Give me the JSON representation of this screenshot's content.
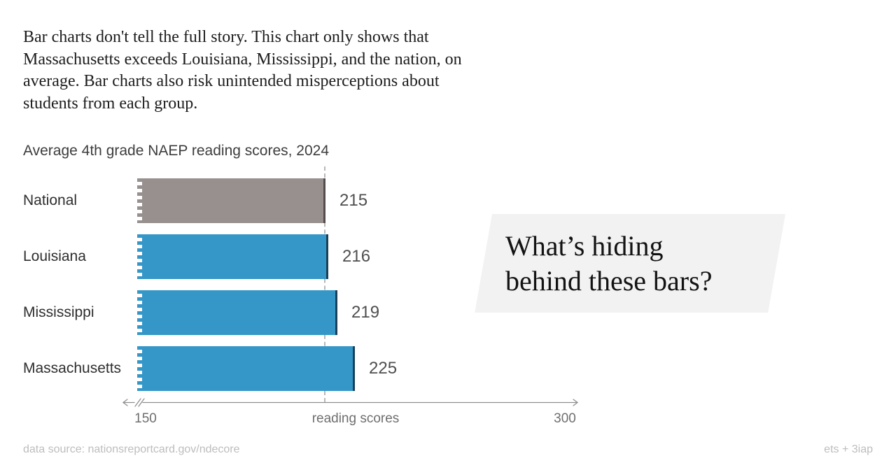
{
  "intro": {
    "text": "Bar charts don't tell the full story. This chart only shows that\nMassachusetts exceeds Louisiana, Mississippi, and the nation, on\naverage. Bar charts also risk unintended misperceptions about\nstudents from each group."
  },
  "chart_data": {
    "type": "bar",
    "orientation": "horizontal",
    "title": "Average 4th grade NAEP reading scores, 2024",
    "categories": [
      "National",
      "Louisiana",
      "Mississippi",
      "Massachusetts"
    ],
    "values": [
      215,
      216,
      219,
      225
    ],
    "xlabel": "reading scores",
    "xlim": [
      150,
      300
    ],
    "tick_labels": [
      "150",
      "300"
    ],
    "axis_break_at_start": true,
    "reference_line_value": 215,
    "reference_line_style": "dashed",
    "grid": false,
    "legend": false,
    "bar_colors": [
      "#97908f",
      "#3596c8",
      "#3596c8",
      "#3596c8"
    ],
    "bar_edge_colors": [
      "#544c4e",
      "#1c4057",
      "#1c4057",
      "#1c4057"
    ],
    "reference_line_color": "#b8b8b8"
  },
  "annotation": {
    "text": "What’s hiding\nbehind these bars?"
  },
  "footer": {
    "source": "data source: nationsreportcard.gov/ndecore",
    "credit": "ets + 3iap"
  }
}
